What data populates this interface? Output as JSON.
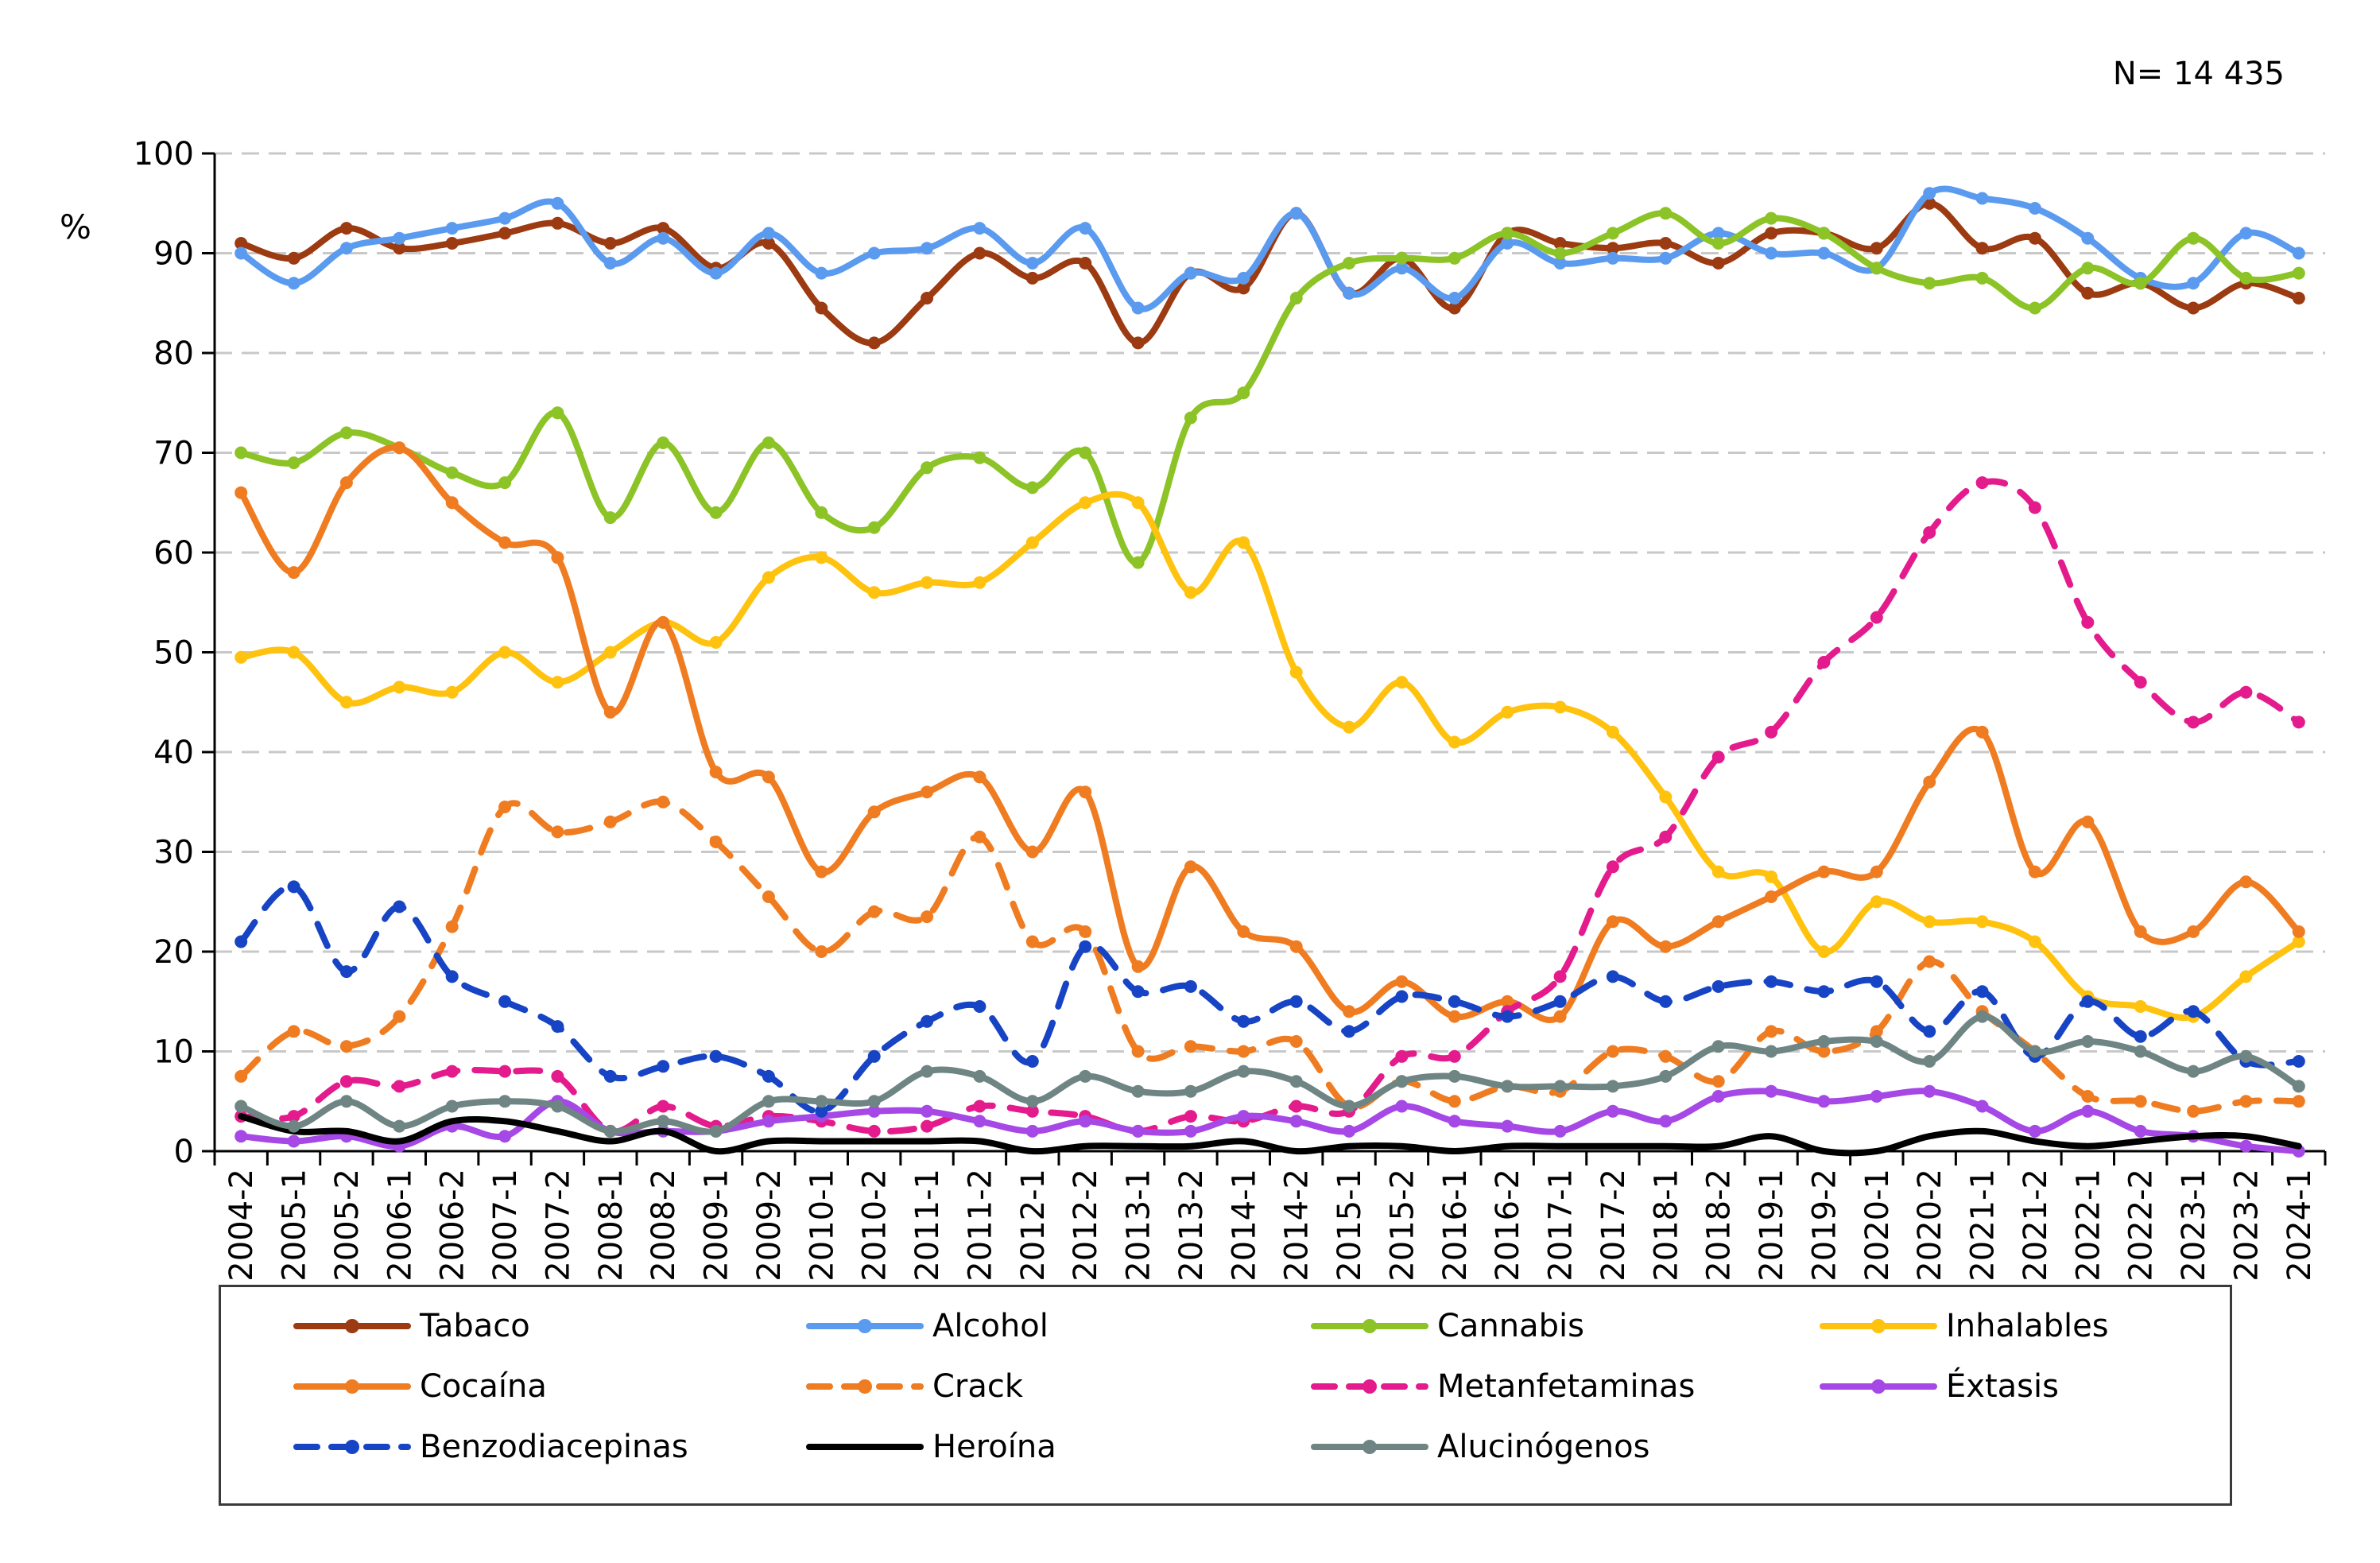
{
  "annotation": "N= 14 435",
  "chart_data": {
    "type": "line",
    "title": "",
    "xlabel": "",
    "ylabel": "%",
    "ylim": [
      0,
      100
    ],
    "yticks": [
      0,
      10,
      20,
      30,
      40,
      50,
      60,
      70,
      80,
      90,
      100
    ],
    "grid": "horizontal dashed",
    "legend_position": "bottom",
    "categories": [
      "2004-2",
      "2005-1",
      "2005-2",
      "2006-1",
      "2006-2",
      "2007-1",
      "2007-2",
      "2008-1",
      "2008-2",
      "2009-1",
      "2009-2",
      "2010-1",
      "2010-2",
      "2011-1",
      "2011-2",
      "2012-1",
      "2012-2",
      "2013-1",
      "2013-2",
      "2014-1",
      "2014-2",
      "2015-1",
      "2015-2",
      "2016-1",
      "2016-2",
      "2017-1",
      "2017-2",
      "2018-1",
      "2018-2",
      "2019-1",
      "2019-2",
      "2020-1",
      "2020-2",
      "2021-1",
      "2021-2",
      "2022-1",
      "2022-2",
      "2023-1",
      "2023-2",
      "2024-1"
    ],
    "series": [
      {
        "name": "Tabaco",
        "color": "#9c3a12",
        "dash": "solid",
        "values": [
          91,
          89.5,
          92.5,
          90.5,
          91,
          92,
          93,
          91,
          92.5,
          88.5,
          91,
          84.5,
          81,
          85.5,
          90,
          87.5,
          89,
          81,
          88,
          86.5,
          94,
          86,
          89.5,
          84.5,
          92,
          91,
          90.5,
          91,
          89,
          92,
          92,
          90.5,
          95,
          90.5,
          91.5,
          86,
          87,
          84.5,
          87,
          85.5
        ]
      },
      {
        "name": "Alcohol",
        "color": "#5b9bef",
        "dash": "solid",
        "values": [
          90,
          87,
          90.5,
          91.5,
          92.5,
          93.5,
          95,
          89,
          91.5,
          88,
          92,
          88,
          90,
          90.5,
          92.5,
          89,
          92.5,
          84.5,
          88,
          87.5,
          94,
          86,
          88.5,
          85.5,
          91,
          89,
          89.5,
          89.5,
          92,
          90,
          90,
          88.5,
          96,
          95.5,
          94.5,
          91.5,
          87.5,
          87,
          92,
          90
        ]
      },
      {
        "name": "Cannabis",
        "color": "#8cc326",
        "dash": "solid",
        "values": [
          70,
          69,
          72,
          70.5,
          68,
          67,
          74,
          63.5,
          71,
          64,
          71,
          64,
          62.5,
          68.5,
          69.5,
          66.5,
          70,
          59,
          73.5,
          76,
          85.5,
          89,
          89.5,
          89.5,
          92,
          90,
          92,
          94,
          91,
          93.5,
          92,
          88.5,
          87,
          87.5,
          84.5,
          88.5,
          87,
          91.5,
          87.5,
          88
        ]
      },
      {
        "name": "Inhalables",
        "color": "#ffc20e",
        "dash": "solid",
        "values": [
          49.5,
          50,
          45,
          46.5,
          46,
          50,
          47,
          50,
          53,
          51,
          57.5,
          59.5,
          56,
          57,
          57,
          61,
          65,
          65,
          56,
          61,
          48,
          42.5,
          47,
          41,
          44,
          44.5,
          42,
          35.5,
          28,
          27.5,
          20,
          25,
          23,
          23,
          21,
          15.5,
          14.5,
          13.5,
          17.5,
          21
        ]
      },
      {
        "name": "Cocaína",
        "color": "#f07c21",
        "dash": "solid",
        "values": [
          66,
          58,
          67,
          70.5,
          65,
          61,
          59.5,
          44,
          53,
          38,
          37.5,
          28,
          34,
          36,
          37.5,
          30,
          36,
          18.5,
          28.5,
          22,
          20.5,
          14,
          17,
          13.5,
          15,
          13.5,
          23,
          20.5,
          23,
          25.5,
          28,
          28,
          37,
          42,
          28,
          33,
          22,
          22,
          27,
          22
        ]
      },
      {
        "name": "Crack",
        "color": "#f07c21",
        "dash": "dashed",
        "values": [
          7.5,
          12,
          10.5,
          13.5,
          22.5,
          34.5,
          32,
          33,
          35,
          31,
          25.5,
          20,
          24,
          23.5,
          31.5,
          21,
          22,
          10,
          10.5,
          10,
          11,
          4.5,
          7,
          5,
          6.5,
          6,
          10,
          9.5,
          7,
          12,
          10,
          12,
          19,
          14,
          10,
          5.5,
          5,
          4,
          5,
          5
        ]
      },
      {
        "name": "Metanfetaminas",
        "color": "#e41b8c",
        "dash": "dashed",
        "values": [
          3.5,
          3.5,
          7,
          6.5,
          8,
          8,
          7.5,
          2,
          4.5,
          2.5,
          3.5,
          3,
          2,
          2.5,
          4.5,
          4,
          3.5,
          2,
          3.5,
          3,
          4.5,
          4,
          9.5,
          9.5,
          14,
          17.5,
          28.5,
          31.5,
          39.5,
          42,
          49,
          53.5,
          62,
          67,
          64.5,
          53,
          47,
          43,
          46,
          43
        ]
      },
      {
        "name": "Éxtasis",
        "color": "#a548e6",
        "dash": "solid",
        "values": [
          1.5,
          1,
          1.5,
          0.5,
          2.5,
          1.5,
          5,
          2,
          2,
          2,
          3,
          3.5,
          4,
          4,
          3,
          2,
          3,
          2,
          2,
          3.5,
          3,
          2,
          4.5,
          3,
          2.5,
          2,
          4,
          3,
          5.5,
          6,
          5,
          5.5,
          6,
          4.5,
          2,
          4,
          2,
          1.5,
          0.5,
          0
        ]
      },
      {
        "name": "Benzodiacepinas",
        "color": "#1644c4",
        "dash": "dashed",
        "values": [
          21,
          26.5,
          18,
          24.5,
          17.5,
          15,
          12.5,
          7.5,
          8.5,
          9.5,
          7.5,
          4,
          9.5,
          13,
          14.5,
          9,
          20.5,
          16,
          16.5,
          13,
          15,
          12,
          15.5,
          15,
          13.5,
          15,
          17.5,
          15,
          16.5,
          17,
          16,
          17,
          12,
          16,
          9.5,
          15,
          11.5,
          14,
          9,
          9
        ]
      },
      {
        "name": "Heroína",
        "color": "#000000",
        "dash": "solid",
        "values": [
          3.5,
          2,
          2,
          1,
          3,
          3,
          2,
          1,
          2,
          0,
          1,
          1,
          1,
          1,
          1,
          0,
          0.5,
          0.5,
          0.5,
          1,
          0,
          0.5,
          0.5,
          0,
          0.5,
          0.5,
          0.5,
          0.5,
          0.5,
          1.5,
          0,
          0,
          1.5,
          2,
          1,
          0.5,
          1,
          1.5,
          1.5,
          0.5
        ]
      },
      {
        "name": "Alucinógenos",
        "color": "#6e8583",
        "dash": "solid",
        "values": [
          4.5,
          2.5,
          5,
          2.5,
          4.5,
          5,
          4.5,
          2,
          3,
          2,
          5,
          5,
          5,
          8,
          7.5,
          5,
          7.5,
          6,
          6,
          8,
          7,
          4.5,
          7,
          7.5,
          6.5,
          6.5,
          6.5,
          7.5,
          10.5,
          10,
          11,
          11,
          9,
          13.5,
          10,
          11,
          10,
          8,
          9.5,
          6.5
        ]
      }
    ]
  }
}
